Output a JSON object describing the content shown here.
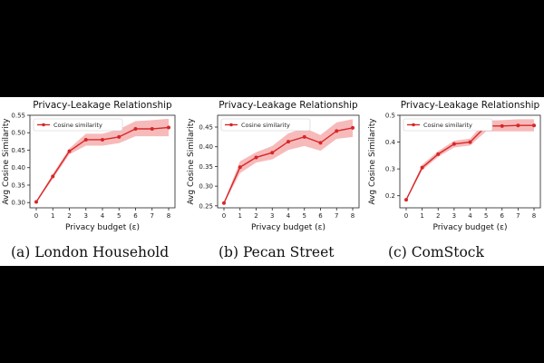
{
  "colors": {
    "line": "#d62728",
    "band": "#f4a3a3"
  },
  "chart_data": [
    {
      "type": "line",
      "title": "Privacy-Leakage Relationship",
      "xlabel": "Privacy budget (ε)",
      "ylabel": "Avg Cosine Similarity",
      "x": [
        0,
        1,
        2,
        3,
        4,
        5,
        6,
        7,
        8
      ],
      "xticks": [
        "0",
        "1",
        "2",
        "3",
        "4",
        "5",
        "6",
        "7",
        "8"
      ],
      "ylim": [
        0.285,
        0.55
      ],
      "yticks": [
        "0.30",
        "0.35",
        "0.40",
        "0.45",
        "0.50",
        "0.55"
      ],
      "legend_position": "top-left",
      "series": [
        {
          "name": "Cosine similarity",
          "values": [
            0.302,
            0.375,
            0.447,
            0.48,
            0.48,
            0.488,
            0.511,
            0.511,
            0.515
          ],
          "lower": [
            0.3,
            0.368,
            0.438,
            0.463,
            0.463,
            0.47,
            0.49,
            0.49,
            0.49
          ],
          "upper": [
            0.305,
            0.382,
            0.455,
            0.497,
            0.497,
            0.51,
            0.533,
            0.536,
            0.54
          ]
        }
      ],
      "caption": "(a) London Household"
    },
    {
      "type": "line",
      "title": "Privacy-Leakage Relationship",
      "xlabel": "Privacy budget (ε)",
      "ylabel": "Avg Cosine Similarity",
      "x": [
        0,
        1,
        2,
        3,
        4,
        5,
        6,
        7,
        8
      ],
      "xticks": [
        "0",
        "1",
        "2",
        "3",
        "4",
        "5",
        "6",
        "7",
        "8"
      ],
      "ylim": [
        0.245,
        0.48
      ],
      "yticks": [
        "0.25",
        "0.30",
        "0.35",
        "0.40",
        "0.45"
      ],
      "legend_position": "top-left",
      "series": [
        {
          "name": "Cosine similarity",
          "values": [
            0.257,
            0.348,
            0.373,
            0.385,
            0.413,
            0.425,
            0.41,
            0.44,
            0.448
          ],
          "lower": [
            0.255,
            0.333,
            0.36,
            0.368,
            0.392,
            0.402,
            0.39,
            0.42,
            0.425
          ],
          "upper": [
            0.259,
            0.363,
            0.386,
            0.402,
            0.434,
            0.448,
            0.43,
            0.462,
            0.47
          ]
        }
      ],
      "caption": "(b) Pecan Street"
    },
    {
      "type": "line",
      "title": "Privacy-Leakage Relationship",
      "xlabel": "Privacy budget (ε)",
      "ylabel": "Avg Cosine Similarity",
      "x": [
        0,
        1,
        2,
        3,
        4,
        5,
        6,
        7,
        8
      ],
      "xticks": [
        "0",
        "1",
        "2",
        "3",
        "4",
        "5",
        "6",
        "7",
        "8"
      ],
      "ylim": [
        0.155,
        0.5
      ],
      "yticks": [
        "0.2",
        "0.3",
        "0.4",
        "0.5"
      ],
      "legend_position": "top-left",
      "series": [
        {
          "name": "Cosine similarity",
          "values": [
            0.185,
            0.305,
            0.355,
            0.393,
            0.4,
            0.46,
            0.46,
            0.462,
            0.462
          ],
          "lower": [
            0.182,
            0.295,
            0.345,
            0.38,
            0.387,
            0.44,
            0.44,
            0.44,
            0.44
          ],
          "upper": [
            0.188,
            0.316,
            0.366,
            0.405,
            0.413,
            0.48,
            0.482,
            0.485,
            0.485
          ]
        }
      ],
      "caption": "(c) ComStock"
    }
  ]
}
